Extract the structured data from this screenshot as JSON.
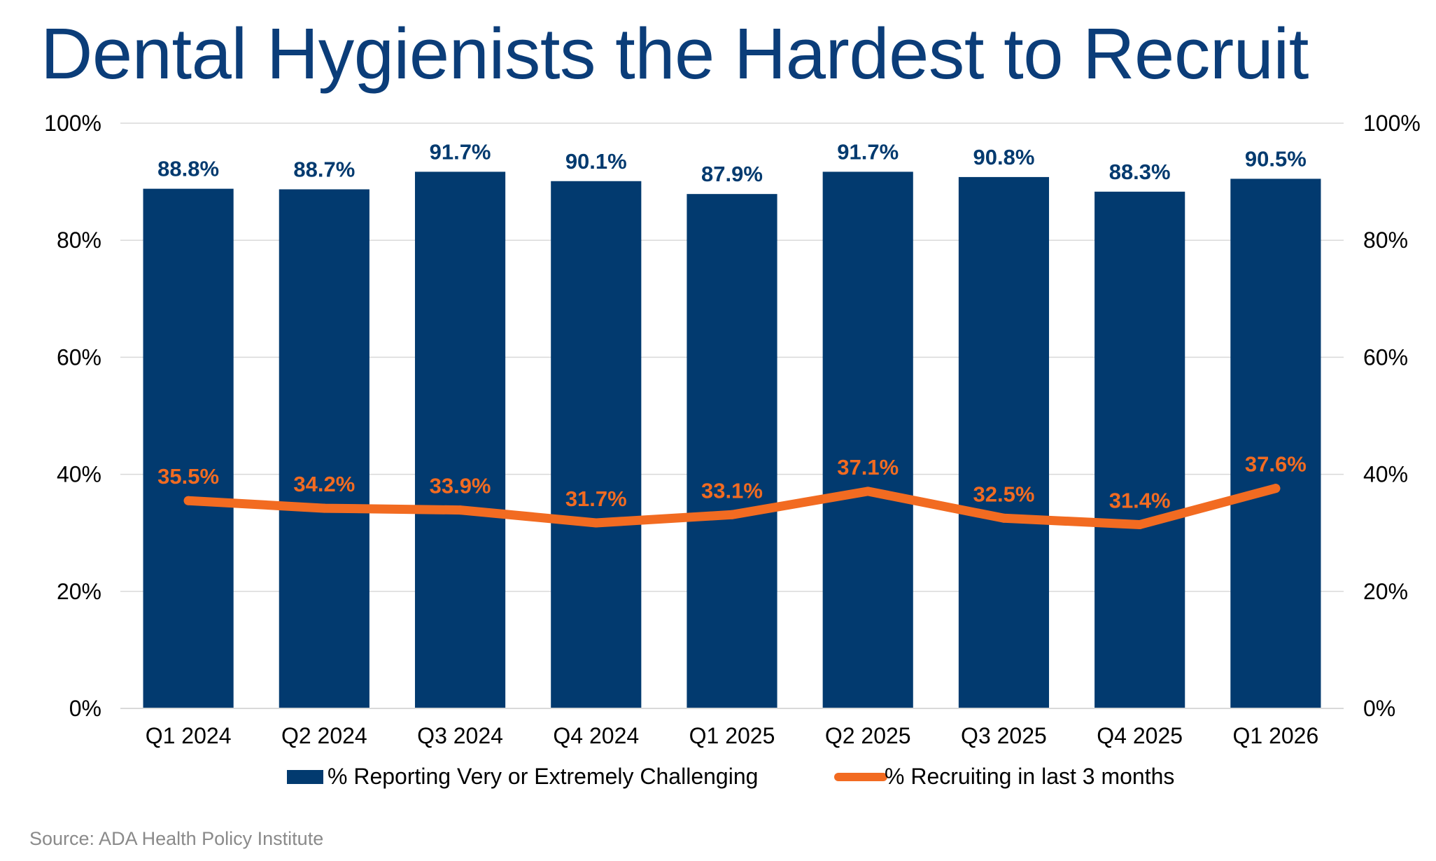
{
  "title": "Dental Hygienists the Hardest to Recruit",
  "source": "Source: ADA Health Policy Institute",
  "colors": {
    "bar": "#023a6f",
    "line": "#f26b21",
    "title": "#0b3d79",
    "grid": "#d9d9d9",
    "axis_text": "#000000"
  },
  "chart_data": {
    "type": "bar",
    "title": "Dental Hygienists the Hardest to Recruit",
    "categories": [
      "Q1 2024",
      "Q2 2024",
      "Q3 2024",
      "Q4 2024",
      "Q1 2025",
      "Q2 2025",
      "Q3 2025",
      "Q4 2025",
      "Q1 2026"
    ],
    "series": [
      {
        "name": "% Reporting Very or Extremely Challenging",
        "type": "bar",
        "axis": "left",
        "values": [
          88.8,
          88.7,
          91.7,
          90.1,
          87.9,
          91.7,
          90.8,
          88.3,
          90.5
        ],
        "labels": [
          "88.8%",
          "88.7%",
          "91.7%",
          "90.1%",
          "87.9%",
          "91.7%",
          "90.8%",
          "88.3%",
          "90.5%"
        ]
      },
      {
        "name": "% Recruiting in last 3 months",
        "type": "line",
        "axis": "right",
        "values": [
          35.5,
          34.2,
          33.9,
          31.7,
          33.1,
          37.1,
          32.5,
          31.4,
          37.6
        ],
        "labels": [
          "35.5%",
          "34.2%",
          "33.9%",
          "31.7%",
          "33.1%",
          "37.1%",
          "32.5%",
          "31.4%",
          "37.6%"
        ]
      }
    ],
    "ylim": [
      0,
      100
    ],
    "y_ticks": [
      "0%",
      "20%",
      "40%",
      "60%",
      "80%",
      "100%"
    ],
    "y2_ticks": [
      "0%",
      "20%",
      "40%",
      "60%",
      "80%",
      "100%"
    ],
    "grid": true,
    "legend_position": "bottom"
  }
}
